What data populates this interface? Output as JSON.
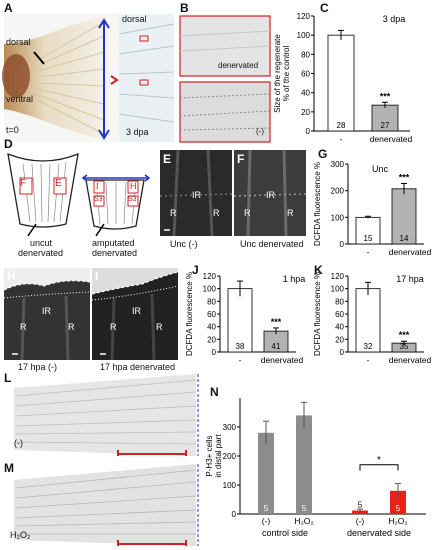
{
  "panels": {
    "A": {
      "letter": "A",
      "dorsal": "dorsal",
      "ventral": "ventral",
      "t0": "t=0",
      "dorsal2": "dorsal",
      "dpa": "3 dpa"
    },
    "B": {
      "letter": "B",
      "denervated": "denervated",
      "minus": "(-)"
    },
    "C": {
      "letter": "C",
      "title": "3 dpa",
      "ylabel": "Size of the regenerate\n% of the control",
      "xlabel_minus": "-",
      "xlabel_den": "denervated"
    },
    "D": {
      "letter": "D",
      "F": "F",
      "E": "E",
      "I": "I",
      "H": "H",
      "S3a": "S3",
      "S3b": "S3",
      "uncut": "uncut",
      "amputated": "amputated",
      "denervated": "denervated"
    },
    "E": {
      "letter": "E",
      "caption": "Unc (-)",
      "IR": "IR",
      "R1": "R",
      "R2": "R"
    },
    "F": {
      "letter": "F",
      "caption": "Unc denervated",
      "IR": "IR",
      "R1": "R",
      "R2": "R"
    },
    "G": {
      "letter": "G",
      "title": "Unc",
      "ylabel": "DCFDA fluorescence %",
      "xlabel_minus": "-",
      "xlabel_den": "denervated"
    },
    "H": {
      "letter": "H",
      "caption": "17 hpa (-)",
      "IR": "IR",
      "R1": "R",
      "R2": "R"
    },
    "I": {
      "letter": "I",
      "caption": "17 hpa denervated",
      "IR": "IR",
      "R1": "R",
      "R2": "R"
    },
    "J": {
      "letter": "J",
      "title": "1 hpa",
      "ylabel": "DCFDA fluorescence %",
      "xlabel_minus": "-",
      "xlabel_den": "denervated"
    },
    "K": {
      "letter": "K",
      "title": "17 hpa",
      "ylabel": "DCFDA fluorescence %",
      "xlabel_minus": "-",
      "xlabel_den": "denervated"
    },
    "L": {
      "letter": "L",
      "label": "(-)"
    },
    "M": {
      "letter": "M",
      "label": "H₂O₂"
    },
    "N": {
      "letter": "N",
      "ylabel": "P-H3+ cells\nin distal part",
      "control_side": "control side",
      "denervated_side": "denervated side",
      "star": "*"
    }
  },
  "chart_data": [
    {
      "id": "C",
      "type": "bar",
      "categories": [
        "-",
        "denervated"
      ],
      "values": [
        100,
        27
      ],
      "errors": [
        5,
        3
      ],
      "n": [
        "28",
        "27"
      ],
      "sig": [
        "",
        "***"
      ],
      "colors": [
        "#ffffff",
        "#b3b3b3"
      ],
      "ylim": [
        0,
        120
      ],
      "yticks": [
        0,
        20,
        40,
        60,
        80,
        100,
        120
      ]
    },
    {
      "id": "G",
      "type": "bar",
      "categories": [
        "-",
        "denervated"
      ],
      "values": [
        100,
        207
      ],
      "errors": [
        4,
        20
      ],
      "n": [
        "15",
        "14"
      ],
      "sig": [
        "",
        "***"
      ],
      "colors": [
        "#ffffff",
        "#b3b3b3"
      ],
      "ylim": [
        0,
        300
      ],
      "yticks": [
        0,
        100,
        200,
        300
      ]
    },
    {
      "id": "J",
      "type": "bar",
      "categories": [
        "-",
        "denervated"
      ],
      "values": [
        100,
        33
      ],
      "errors": [
        12,
        5
      ],
      "n": [
        "38",
        "41"
      ],
      "sig": [
        "",
        "***"
      ],
      "colors": [
        "#ffffff",
        "#b3b3b3"
      ],
      "ylim": [
        0,
        120
      ],
      "yticks": [
        0,
        20,
        40,
        60,
        80,
        100,
        120
      ]
    },
    {
      "id": "K",
      "type": "bar",
      "categories": [
        "-",
        "denervated"
      ],
      "values": [
        100,
        14
      ],
      "errors": [
        10,
        3
      ],
      "n": [
        "32",
        "35"
      ],
      "sig": [
        "",
        "***"
      ],
      "colors": [
        "#ffffff",
        "#b3b3b3"
      ],
      "ylim": [
        0,
        120
      ],
      "yticks": [
        0,
        20,
        40,
        60,
        80,
        100,
        120
      ]
    },
    {
      "id": "N",
      "type": "bar",
      "categories": [
        "(-)",
        "H₂O₂",
        "(-)",
        "H₂O₂"
      ],
      "values": [
        280,
        340,
        12,
        80
      ],
      "errors": [
        40,
        45,
        5,
        25
      ],
      "n": [
        "5",
        "5",
        "5",
        "5"
      ],
      "colors": [
        "#8c8c8c",
        "#8c8c8c",
        "#e8211b",
        "#e8211b"
      ],
      "ylim": [
        0,
        400
      ],
      "yticks": [
        0,
        100,
        200,
        300
      ]
    }
  ]
}
